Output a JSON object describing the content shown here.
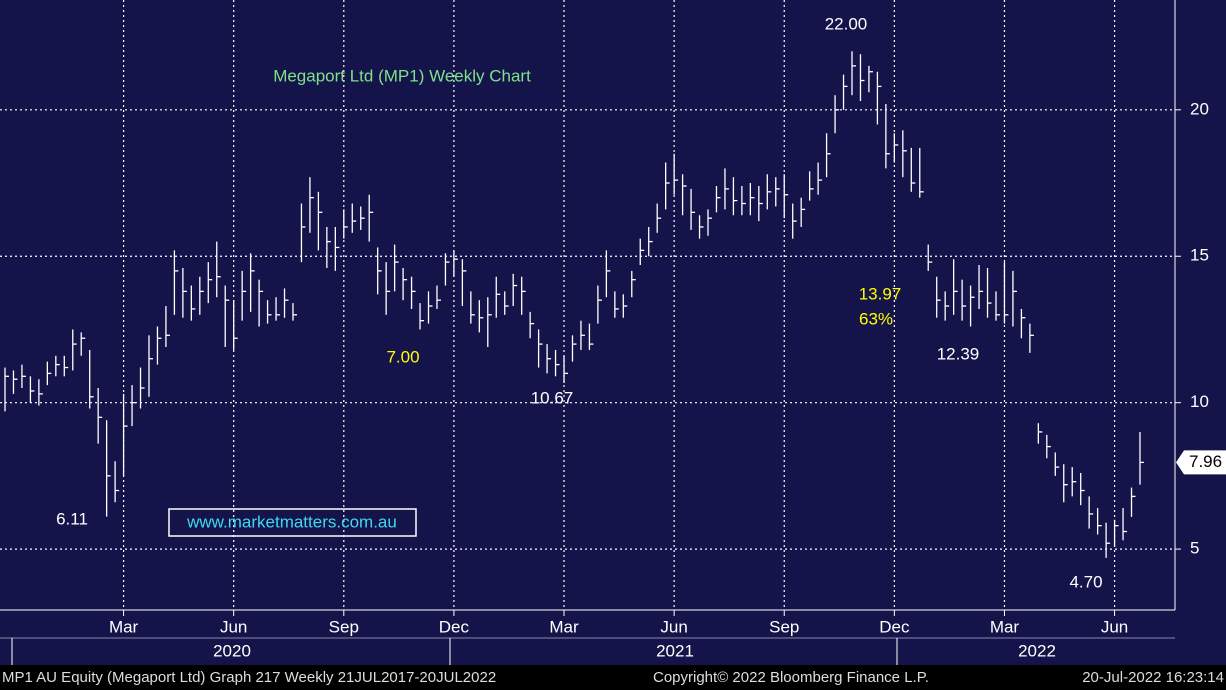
{
  "chart_data": {
    "type": "ohlc",
    "title": "Megaport Ltd (MP1) Weekly Chart",
    "categories": [
      null,
      null,
      null,
      null,
      null,
      null,
      null,
      null,
      null,
      null,
      null,
      null,
      null,
      null,
      "Mar",
      null,
      null,
      null,
      null,
      null,
      null,
      null,
      null,
      null,
      null,
      null,
      null,
      "Jun",
      null,
      null,
      null,
      null,
      null,
      null,
      null,
      null,
      null,
      null,
      null,
      null,
      "Sep",
      null,
      null,
      null,
      null,
      null,
      null,
      null,
      null,
      null,
      null,
      null,
      null,
      "Dec",
      null,
      null,
      null,
      null,
      null,
      null,
      null,
      null,
      null,
      null,
      null,
      null,
      "Mar",
      null,
      null,
      null,
      null,
      null,
      null,
      null,
      null,
      null,
      null,
      null,
      null,
      "Jun",
      null,
      null,
      null,
      null,
      null,
      null,
      null,
      null,
      null,
      null,
      null,
      null,
      "Sep",
      null,
      null,
      null,
      null,
      null,
      null,
      null,
      null,
      null,
      null,
      null,
      null,
      "Dec",
      null,
      null,
      null,
      null,
      null,
      null,
      null,
      null,
      null,
      null,
      null,
      null,
      "Mar",
      null,
      null,
      null,
      null,
      null,
      null,
      null,
      null,
      null,
      null,
      null,
      null,
      "Jun",
      null,
      null,
      null
    ],
    "years": [
      "2020",
      "2021",
      "2022"
    ],
    "high": [
      11.2,
      11.1,
      11.3,
      10.9,
      10.8,
      11.4,
      11.6,
      11.6,
      12.5,
      12.4,
      11.8,
      10.5,
      9.4,
      8.0,
      10.3,
      10.6,
      11.2,
      12.3,
      12.6,
      13.3,
      15.2,
      14.6,
      14.0,
      14.3,
      14.8,
      15.5,
      14.0,
      13.5,
      14.5,
      15.1,
      14.2,
      13.5,
      13.6,
      13.9,
      13.4,
      16.8,
      17.7,
      17.2,
      16.0,
      16.0,
      16.6,
      16.8,
      16.7,
      17.1,
      15.3,
      14.8,
      15.4,
      14.6,
      14.3,
      13.4,
      13.8,
      14.0,
      15.1,
      15.2,
      14.9,
      13.8,
      13.5,
      13.6,
      14.3,
      13.8,
      14.4,
      14.3,
      13.1,
      12.5,
      12.0,
      11.8,
      11.6,
      12.3,
      12.8,
      12.7,
      14.0,
      15.2,
      13.8,
      13.7,
      14.5,
      15.6,
      16.0,
      16.8,
      18.2,
      18.5,
      17.8,
      17.3,
      16.4,
      16.6,
      17.4,
      18.0,
      17.7,
      17.4,
      17.5,
      17.4,
      17.8,
      17.7,
      17.8,
      16.8,
      17.0,
      17.9,
      18.2,
      19.2,
      20.5,
      21.2,
      22.0,
      21.9,
      21.5,
      21.3,
      20.2,
      19.2,
      19.3,
      18.7,
      18.7,
      15.4,
      14.3,
      13.8,
      14.9,
      14.2,
      14.0,
      14.7,
      14.6,
      13.8,
      14.8,
      14.5,
      13.2,
      12.7,
      9.3,
      8.9,
      8.3,
      7.9,
      7.8,
      7.6,
      6.8,
      6.4,
      5.9,
      6.0,
      6.4,
      7.1,
      9.0
    ],
    "low": [
      9.7,
      10.3,
      10.5,
      10.0,
      9.9,
      10.6,
      10.9,
      10.9,
      11.1,
      11.6,
      9.8,
      8.6,
      6.11,
      6.6,
      7.5,
      9.2,
      9.8,
      10.2,
      11.3,
      11.9,
      13.0,
      12.9,
      12.8,
      13.0,
      13.4,
      13.6,
      11.9,
      11.8,
      12.8,
      13.1,
      12.6,
      12.7,
      12.8,
      12.9,
      12.8,
      14.8,
      15.8,
      15.2,
      14.6,
      14.5,
      15.6,
      15.8,
      15.9,
      15.5,
      13.7,
      13.0,
      13.8,
      13.5,
      13.2,
      12.5,
      12.7,
      13.2,
      14.0,
      14.3,
      13.3,
      12.7,
      12.4,
      11.9,
      12.9,
      13.0,
      13.3,
      13.0,
      12.2,
      11.2,
      11.0,
      10.9,
      10.67,
      11.4,
      11.8,
      11.8,
      12.7,
      13.6,
      12.9,
      12.9,
      13.6,
      14.7,
      15.0,
      15.8,
      16.6,
      17.1,
      16.4,
      15.9,
      15.6,
      15.7,
      16.5,
      16.6,
      16.4,
      16.4,
      16.4,
      16.2,
      16.6,
      16.7,
      16.3,
      15.6,
      16.0,
      16.9,
      17.1,
      17.7,
      19.2,
      20.0,
      20.5,
      20.3,
      20.6,
      19.5,
      18.0,
      18.2,
      17.7,
      17.2,
      17.0,
      14.5,
      12.9,
      12.8,
      13.0,
      12.8,
      12.6,
      13.2,
      12.9,
      12.8,
      12.7,
      12.6,
      12.2,
      11.7,
      8.6,
      8.1,
      7.5,
      6.6,
      6.8,
      6.5,
      5.7,
      5.5,
      4.7,
      5.1,
      5.3,
      6.1,
      7.2
    ],
    "close": [
      10.9,
      10.8,
      10.9,
      10.4,
      10.3,
      11.0,
      11.3,
      11.2,
      12.0,
      12.2,
      10.2,
      9.5,
      7.5,
      7.0,
      9.2,
      10.0,
      10.5,
      11.5,
      12.2,
      12.3,
      14.5,
      13.8,
      13.2,
      13.8,
      14.2,
      14.3,
      13.5,
      12.2,
      13.8,
      14.5,
      13.8,
      13.0,
      13.0,
      13.5,
      13.0,
      16.0,
      17.0,
      16.5,
      15.5,
      15.3,
      16.0,
      16.2,
      16.3,
      16.5,
      14.5,
      13.8,
      14.8,
      14.2,
      13.8,
      12.8,
      13.3,
      13.5,
      14.8,
      14.9,
      14.5,
      13.0,
      12.9,
      13.0,
      13.7,
      13.3,
      14.0,
      13.8,
      12.7,
      12.0,
      11.5,
      11.3,
      11.0,
      12.0,
      12.3,
      12.0,
      13.5,
      14.5,
      13.2,
      13.3,
      14.2,
      15.2,
      15.5,
      16.3,
      17.5,
      17.6,
      17.4,
      16.5,
      16.0,
      16.3,
      17.0,
      17.3,
      16.9,
      16.8,
      17.0,
      16.8,
      17.2,
      17.3,
      17.1,
      16.2,
      16.6,
      17.3,
      17.6,
      18.5,
      20.0,
      20.8,
      21.5,
      21.0,
      21.3,
      20.8,
      18.5,
      18.8,
      18.6,
      17.5,
      17.2,
      14.8,
      13.5,
      13.3,
      13.8,
      13.3,
      13.6,
      13.8,
      13.4,
      13.0,
      13.0,
      13.8,
      12.9,
      12.3,
      9.0,
      8.5,
      7.8,
      7.2,
      7.3,
      7.0,
      6.2,
      5.8,
      5.2,
      5.8,
      5.6,
      6.8,
      7.96
    ],
    "color": "#ffffff",
    "ylim": [
      2.92,
      23.75
    ],
    "yticks": [
      5,
      10,
      15,
      20
    ],
    "grid": true,
    "annotations": [
      {
        "text": "22.00",
        "color": "#ffffff"
      },
      {
        "text": "7.00",
        "color": "#ffff00"
      },
      {
        "text": "10.67",
        "color": "#ffffff"
      },
      {
        "text": "13.97",
        "color": "#ffff00"
      },
      {
        "text": "63%",
        "color": "#ffff00"
      },
      {
        "text": "12.39",
        "color": "#ffffff"
      },
      {
        "text": "6.11",
        "color": "#ffffff"
      },
      {
        "text": "4.70",
        "color": "#ffffff"
      }
    ]
  },
  "watermark": "www.marketmatters.com.au",
  "footer": [
    "MP1 AU Equity (Megaport Ltd) Graph 217  Weekly 21JUL2017-20JUL2022",
    "Copyright© 2022 Bloomberg Finance L.P.",
    "20-Jul-2022 16:23:14"
  ]
}
